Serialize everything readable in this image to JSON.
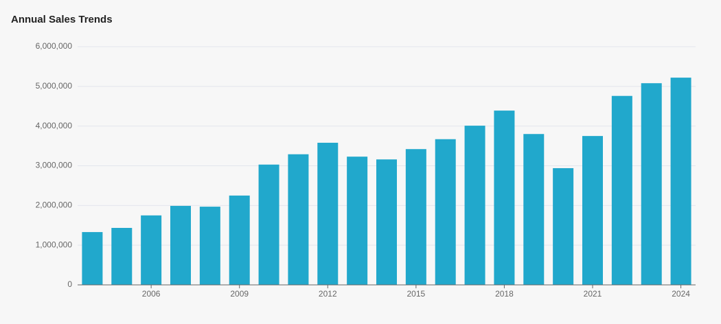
{
  "chart_data": {
    "type": "bar",
    "title": "Annual Sales Trends",
    "categories": [
      null,
      null,
      "2006",
      null,
      null,
      "2009",
      null,
      null,
      "2012",
      null,
      null,
      "2015",
      null,
      null,
      "2018",
      null,
      null,
      "2021",
      null,
      null,
      "2024"
    ],
    "values": [
      1330000,
      1435000,
      1750000,
      1990000,
      1970000,
      2250000,
      3030000,
      3290000,
      3580000,
      3230000,
      3160000,
      3420000,
      3670000,
      4010000,
      4390000,
      3800000,
      2940000,
      3750000,
      4760000,
      5080000,
      5220000
    ],
    "color": "#21a8cc",
    "ylim": [
      0,
      6000000
    ],
    "yticks": [
      0,
      {
        "value": 1000000,
        "label": "1,000,000"
      },
      {
        "value": 2000000,
        "label": "2,000,000"
      },
      {
        "value": 3000000,
        "label": "3,000,000"
      },
      {
        "value": 4000000,
        "label": "4,000,000"
      },
      {
        "value": 5000000,
        "label": "5,000,000"
      },
      {
        "value": 6000000,
        "label": "6,000,000"
      }
    ],
    "grid": true
  }
}
